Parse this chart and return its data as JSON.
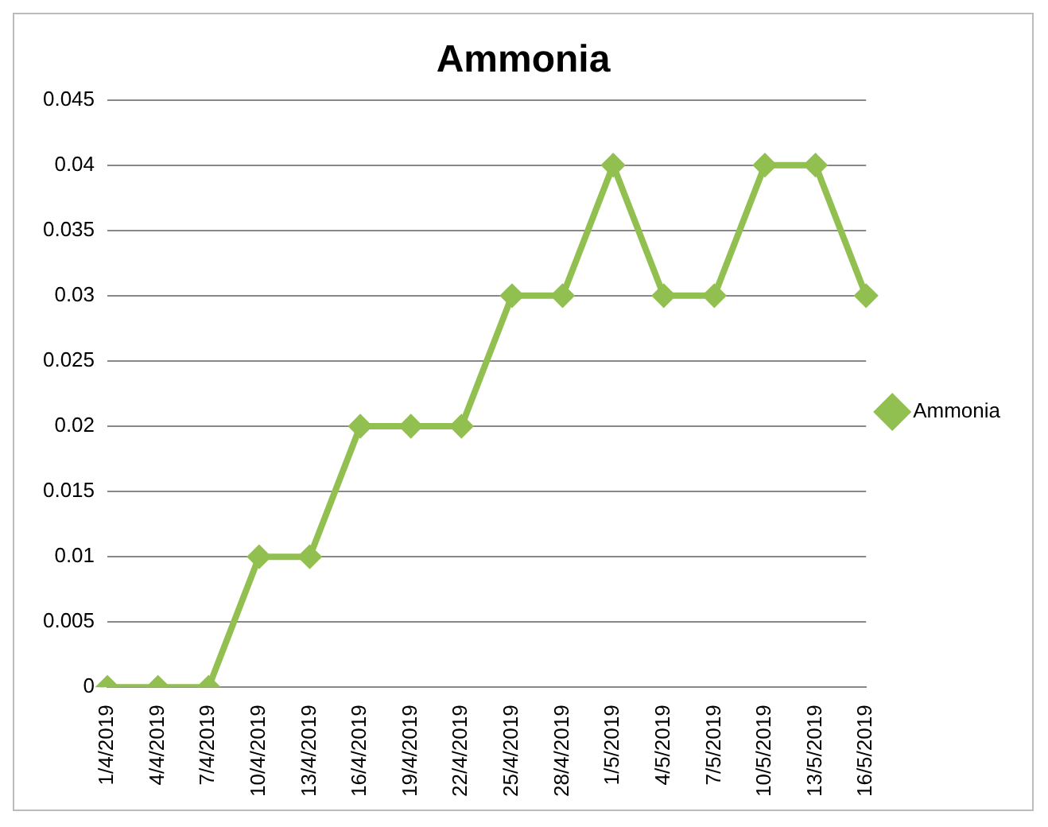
{
  "chart_data": {
    "type": "line",
    "title": "Ammonia",
    "categories": [
      "1/4/2019",
      "4/4/2019",
      "7/4/2019",
      "10/4/2019",
      "13/4/2019",
      "16/4/2019",
      "19/4/2019",
      "22/4/2019",
      "25/4/2019",
      "28/4/2019",
      "1/5/2019",
      "4/5/2019",
      "7/5/2019",
      "10/5/2019",
      "13/5/2019",
      "16/5/2019"
    ],
    "series": [
      {
        "name": "Ammonia",
        "color": "#92c050",
        "values": [
          0,
          0,
          0,
          0.01,
          0.01,
          0.02,
          0.02,
          0.02,
          0.03,
          0.03,
          0.04,
          0.03,
          0.03,
          0.04,
          0.04,
          0.03
        ]
      }
    ],
    "ylim": [
      0,
      0.045
    ],
    "yticks": [
      0,
      0.005,
      0.01,
      0.015,
      0.02,
      0.025,
      0.03,
      0.035,
      0.04,
      0.045
    ],
    "grid": "y",
    "legend": "right",
    "marker": "diamond",
    "line_style": "solid"
  }
}
